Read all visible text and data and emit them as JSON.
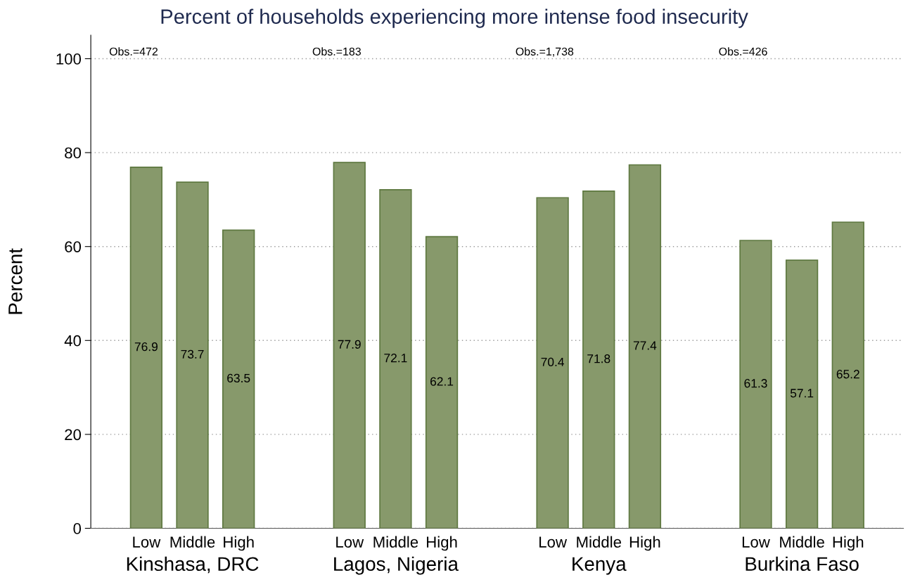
{
  "chart_data": [
    {
      "type": "bar",
      "title": "Percent of households experiencing more intense food insecurity",
      "ylabel": "Percent",
      "xlabel": "Kinshasa, DRC",
      "categories": [
        "Low",
        "Middle",
        "High"
      ],
      "values": [
        76.9,
        73.7,
        63.5
      ],
      "color": "#87996b",
      "data_labels": true,
      "ylim": [
        0,
        105
      ],
      "yticks": [
        0,
        20,
        40,
        60,
        80,
        100
      ],
      "grid": "y",
      "annotations": [
        "Obs.=472"
      ]
    },
    {
      "type": "bar",
      "xlabel": "Lagos, Nigeria",
      "categories": [
        "Low",
        "Middle",
        "High"
      ],
      "values": [
        77.9,
        72.1,
        62.1
      ],
      "color": "#87996b",
      "data_labels": true,
      "grid": "y",
      "tick_labels": "x",
      "annotations": [
        "Obs.=183"
      ]
    },
    {
      "type": "bar",
      "xlabel": "Kenya",
      "categories": [
        "Low",
        "Middle",
        "High"
      ],
      "values": [
        70.4,
        71.8,
        77.4
      ],
      "color": "#87996b",
      "data_labels": true,
      "grid": "y",
      "tick_labels": "x",
      "annotations": [
        "Obs.=1,738"
      ]
    },
    {
      "type": "bar",
      "xlabel": "Burkina Faso",
      "categories": [
        "Low",
        "Middle",
        "High"
      ],
      "values": [
        61.3,
        57.1,
        65.2
      ],
      "color": "#87996b",
      "data_labels": true,
      "grid": "y",
      "tick_labels": "x",
      "annotations": [
        "Obs.=426"
      ]
    }
  ]
}
